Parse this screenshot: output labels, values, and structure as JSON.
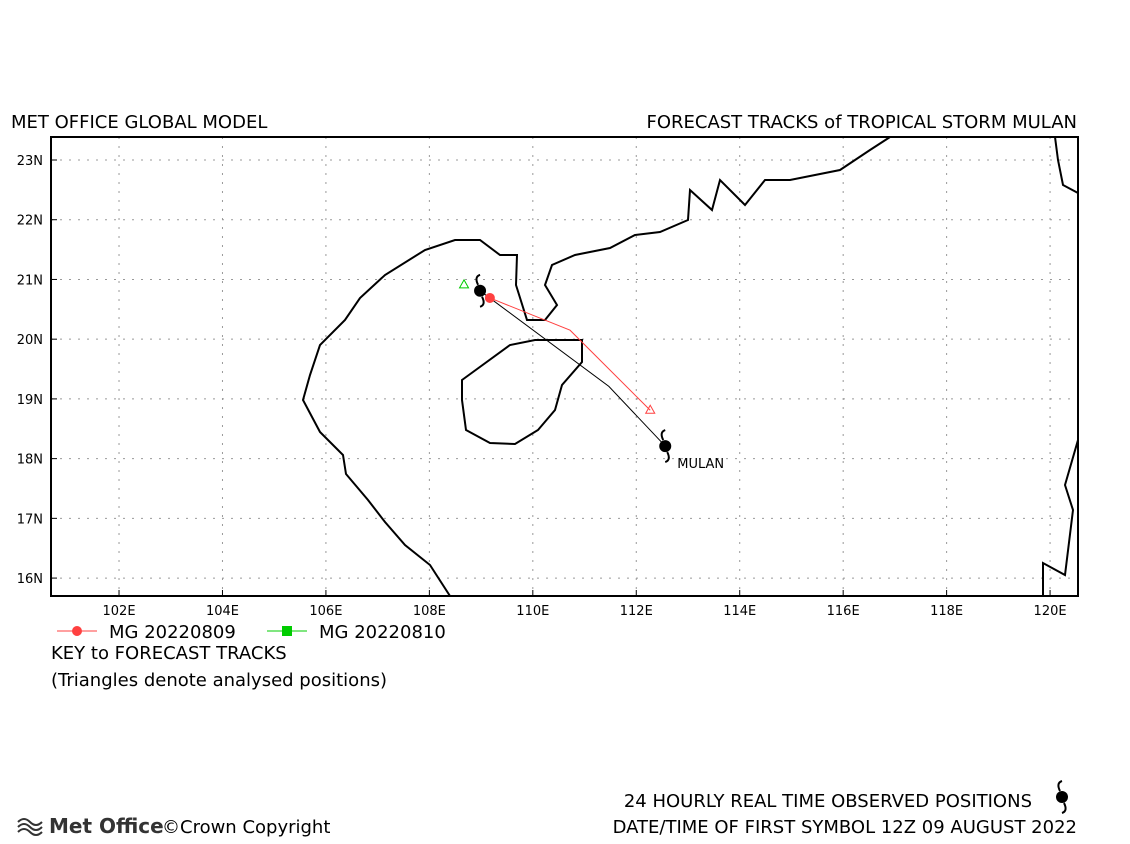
{
  "chart_data": {
    "type": "track",
    "title_left": "MET OFFICE GLOBAL MODEL",
    "title_right": "FORECAST TRACKS of TROPICAL STORM MULAN",
    "xlim": [
      100.685,
      120.54
    ],
    "ylim": [
      15.7,
      23.385
    ],
    "xticks": [
      {
        "value": 102,
        "label": "102E"
      },
      {
        "value": 104,
        "label": "104E"
      },
      {
        "value": 106,
        "label": "106E"
      },
      {
        "value": 108,
        "label": "108E"
      },
      {
        "value": 110,
        "label": "110E"
      },
      {
        "value": 112,
        "label": "112E"
      },
      {
        "value": 114,
        "label": "114E"
      },
      {
        "value": 116,
        "label": "116E"
      },
      {
        "value": 118,
        "label": "118E"
      },
      {
        "value": 120,
        "label": "120E"
      }
    ],
    "yticks": [
      {
        "value": 16,
        "label": "16N"
      },
      {
        "value": 17,
        "label": "17N"
      },
      {
        "value": 18,
        "label": "18N"
      },
      {
        "value": 19,
        "label": "19N"
      },
      {
        "value": 20,
        "label": "20N"
      },
      {
        "value": 21,
        "label": "21N"
      },
      {
        "value": 22,
        "label": "22N"
      },
      {
        "value": 23,
        "label": "23N"
      }
    ],
    "grid": true,
    "series": [
      {
        "name": "MG 20220809",
        "color": "#ff4040",
        "x": [
          112.27,
          110.72,
          109.17
        ],
        "y": [
          18.81,
          20.15,
          20.69
        ]
      },
      {
        "name": "MG 20220810",
        "color": "#00cc00",
        "x": [
          108.67
        ],
        "y": [
          20.91
        ]
      }
    ],
    "observed": {
      "name": "MULAN",
      "color": "#000000",
      "x": [
        112.56,
        111.47,
        108.98
      ],
      "y": [
        18.21,
        19.21,
        20.81
      ]
    },
    "key_title": "KEY to FORECAST TRACKS",
    "key_note": "(Triangles denote analysed positions)",
    "observed_note": "24 HOURLY REAL TIME OBSERVED POSITIONS",
    "date_note": "DATE/TIME OF FIRST SYMBOL 12Z 09 AUGUST 2022",
    "logo": "Met Office",
    "copyright": "©Crown Copyright"
  }
}
